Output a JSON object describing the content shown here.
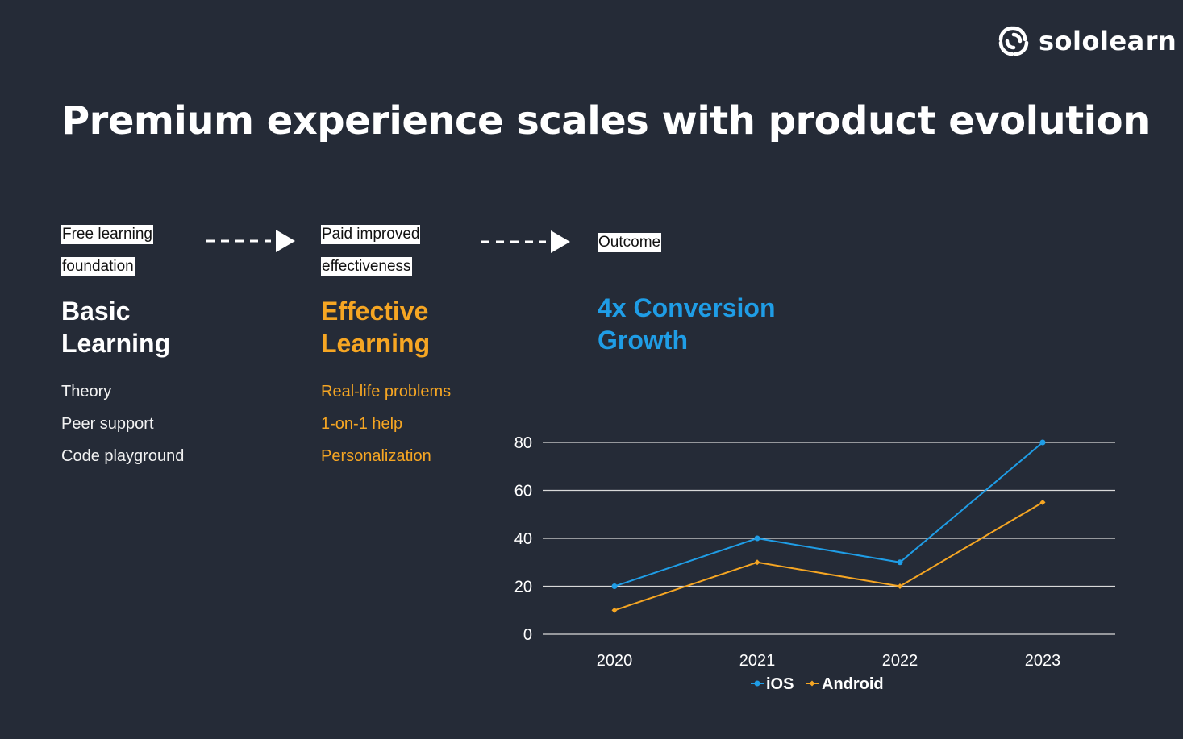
{
  "brand": {
    "name": "sololearn",
    "icon": "sololearn-logo-icon"
  },
  "title": "Premium experience scales with product evolution",
  "columns": [
    {
      "tags": [
        "Free learning",
        "foundation"
      ],
      "heading": [
        "Basic",
        "Learning"
      ],
      "items": [
        "Theory",
        "Peer support",
        "Code playground"
      ]
    },
    {
      "tags": [
        "Paid improved",
        "effectiveness"
      ],
      "heading": [
        "Effective",
        "Learning"
      ],
      "items": [
        "Real-life problems",
        "1-on-1 help",
        "Personalization"
      ]
    },
    {
      "tags": [
        "Outcome"
      ],
      "heading": [
        "4x Conversion",
        "Growth"
      ],
      "items": []
    }
  ],
  "colors": {
    "background": "#252b37",
    "ios": "#1f9de6",
    "android": "#f6a623",
    "grid": "#d9d9d9"
  },
  "chart_data": {
    "type": "line",
    "categories": [
      "2020",
      "2021",
      "2022",
      "2023"
    ],
    "series": [
      {
        "name": "iOS",
        "values": [
          20,
          40,
          30,
          80
        ]
      },
      {
        "name": "Android",
        "values": [
          10,
          30,
          20,
          55
        ]
      }
    ],
    "yticks": [
      0,
      20,
      40,
      60,
      80
    ],
    "ylim": [
      0,
      80
    ],
    "grid": true,
    "legend": "bottom"
  }
}
